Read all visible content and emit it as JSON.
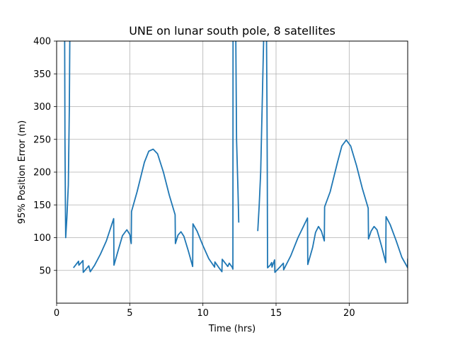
{
  "chart_data": {
    "type": "line",
    "title": "UNE on lunar south pole, 8 satellites",
    "xlabel": "Time (hrs)",
    "ylabel": "95% Position Error (m)",
    "xlim": [
      0,
      24
    ],
    "ylim": [
      0,
      400
    ],
    "xticks": [
      0,
      5,
      10,
      15,
      20
    ],
    "yticks": [
      50,
      100,
      150,
      200,
      250,
      300,
      350,
      400
    ],
    "grid": true,
    "color": "#1f77b4",
    "series": [
      {
        "segments": [
          [
            [
              0.55,
              400
            ],
            [
              0.57,
              250
            ],
            [
              0.6,
              150
            ],
            [
              0.62,
              100
            ],
            [
              0.7,
              130
            ],
            [
              0.8,
              180
            ],
            [
              0.87,
              300
            ],
            [
              0.9,
              400
            ]
          ],
          [
            [
              1.15,
              54
            ],
            [
              1.5,
              64
            ],
            [
              1.52,
              58
            ],
            [
              1.8,
              65
            ],
            [
              1.82,
              47
            ],
            [
              2.2,
              57
            ],
            [
              2.3,
              48
            ],
            [
              2.6,
              58
            ],
            [
              3.0,
              75
            ],
            [
              3.4,
              95
            ],
            [
              3.9,
              129
            ],
            [
              3.92,
              58
            ],
            [
              4.2,
              80
            ],
            [
              4.5,
              103
            ],
            [
              4.8,
              112
            ],
            [
              5.0,
              105
            ],
            [
              5.1,
              91
            ],
            [
              5.12,
              140
            ],
            [
              5.5,
              170
            ],
            [
              6.0,
              215
            ],
            [
              6.3,
              232
            ],
            [
              6.6,
              235
            ],
            [
              6.9,
              228
            ],
            [
              7.3,
              200
            ],
            [
              7.7,
              165
            ],
            [
              8.1,
              135
            ],
            [
              8.12,
              91
            ],
            [
              8.3,
              104
            ],
            [
              8.5,
              109
            ],
            [
              8.7,
              102
            ],
            [
              9.0,
              80
            ],
            [
              9.3,
              56
            ],
            [
              9.32,
              121
            ],
            [
              9.6,
              110
            ],
            [
              10.0,
              88
            ],
            [
              10.4,
              68
            ],
            [
              10.8,
              55
            ],
            [
              10.82,
              63
            ],
            [
              11.1,
              54
            ],
            [
              11.3,
              48
            ],
            [
              11.32,
              67
            ],
            [
              11.6,
              59
            ],
            [
              11.7,
              56
            ],
            [
              11.8,
              61
            ],
            [
              12.0,
              55
            ],
            [
              12.05,
              52
            ],
            [
              12.06,
              400
            ]
          ],
          [
            [
              12.25,
              400
            ],
            [
              12.3,
              250
            ],
            [
              12.4,
              170
            ],
            [
              12.45,
              123
            ]
          ],
          [
            [
              13.75,
              110
            ],
            [
              13.85,
              150
            ],
            [
              13.95,
              200
            ],
            [
              14.05,
              300
            ],
            [
              14.15,
              400
            ]
          ],
          [
            [
              14.35,
              400
            ],
            [
              14.38,
              300
            ],
            [
              14.4,
              200
            ],
            [
              14.42,
              54
            ],
            [
              14.6,
              58
            ],
            [
              14.7,
              62
            ],
            [
              14.72,
              55
            ],
            [
              14.9,
              66
            ],
            [
              14.92,
              47
            ],
            [
              15.3,
              56
            ],
            [
              15.5,
              61
            ],
            [
              15.52,
              51
            ],
            [
              16.0,
              72
            ],
            [
              16.5,
              100
            ],
            [
              17.15,
              130
            ],
            [
              17.17,
              59
            ],
            [
              17.5,
              85
            ],
            [
              17.7,
              108
            ],
            [
              17.9,
              117
            ],
            [
              18.1,
              110
            ],
            [
              18.3,
              95
            ],
            [
              18.32,
              147
            ],
            [
              18.7,
              170
            ],
            [
              19.2,
              215
            ],
            [
              19.5,
              240
            ],
            [
              19.8,
              249
            ],
            [
              20.1,
              240
            ],
            [
              20.5,
              210
            ],
            [
              20.9,
              175
            ],
            [
              21.3,
              145
            ],
            [
              21.32,
              98
            ],
            [
              21.5,
              110
            ],
            [
              21.7,
              117
            ],
            [
              21.9,
              112
            ],
            [
              22.2,
              88
            ],
            [
              22.5,
              62
            ],
            [
              22.52,
              132
            ],
            [
              22.8,
              120
            ],
            [
              23.2,
              96
            ],
            [
              23.6,
              70
            ],
            [
              24.0,
              54
            ],
            [
              24.0,
              68
            ]
          ]
        ]
      }
    ]
  }
}
